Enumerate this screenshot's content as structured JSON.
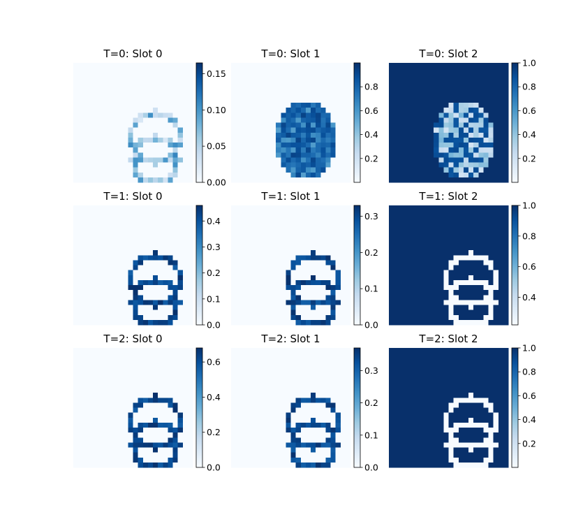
{
  "colormap": {
    "name": "Blues",
    "stops": [
      "#f7fbff",
      "#deebf7",
      "#c6dbef",
      "#9ecae1",
      "#6baed6",
      "#4292c6",
      "#2171b5",
      "#08519c",
      "#08306b"
    ]
  },
  "chart_data": {
    "type": "heatmap",
    "grid": [
      24,
      24
    ],
    "shape_params": {
      "ring1": {
        "center": [
          16.5,
          15.0
        ],
        "radius": 5.0
      },
      "ring2": {
        "center": [
          16.5,
          19.5
        ],
        "radius": 4.5
      }
    },
    "panels": [
      {
        "title": "T=0: Slot 0",
        "pattern": "faint_rings",
        "vmin": 0.0,
        "vmax": 0.165,
        "colorbar_ticks": [
          0.0,
          0.05,
          0.1,
          0.15
        ],
        "colorbar_tick_labels": [
          "0.00",
          "0.05",
          "0.10",
          "0.15"
        ]
      },
      {
        "title": "T=0: Slot 1",
        "pattern": "blob",
        "vmin": 0.0,
        "vmax": 1.0,
        "colorbar_ticks": [
          0.2,
          0.4,
          0.6,
          0.8
        ],
        "colorbar_tick_labels": [
          "0.2",
          "0.4",
          "0.6",
          "0.8"
        ]
      },
      {
        "title": "T=0: Slot 2",
        "pattern": "background_with_hole",
        "vmin": 0.0,
        "vmax": 1.0,
        "colorbar_ticks": [
          0.2,
          0.4,
          0.6,
          0.8,
          1.0
        ],
        "colorbar_tick_labels": [
          "0.2",
          "0.4",
          "0.6",
          "0.8",
          "1.0"
        ]
      },
      {
        "title": "T=1: Slot 0",
        "pattern": "rings",
        "vmin": 0.0,
        "vmax": 0.46,
        "colorbar_ticks": [
          0.0,
          0.1,
          0.2,
          0.3,
          0.4
        ],
        "colorbar_tick_labels": [
          "0.0",
          "0.1",
          "0.2",
          "0.3",
          "0.4"
        ]
      },
      {
        "title": "T=1: Slot 1",
        "pattern": "rings",
        "vmin": 0.0,
        "vmax": 0.33,
        "colorbar_ticks": [
          0.0,
          0.1,
          0.2,
          0.3
        ],
        "colorbar_tick_labels": [
          "0.0",
          "0.1",
          "0.2",
          "0.3"
        ]
      },
      {
        "title": "T=1: Slot 2",
        "pattern": "background_minus_rings",
        "vmin": 0.22,
        "vmax": 1.0,
        "colorbar_ticks": [
          0.4,
          0.6,
          0.8,
          1.0
        ],
        "colorbar_tick_labels": [
          "0.4",
          "0.6",
          "0.8",
          "1.0"
        ]
      },
      {
        "title": "T=2: Slot 0",
        "pattern": "rings",
        "vmin": 0.0,
        "vmax": 0.68,
        "colorbar_ticks": [
          0.0,
          0.2,
          0.4,
          0.6
        ],
        "colorbar_tick_labels": [
          "0.0",
          "0.2",
          "0.4",
          "0.6"
        ]
      },
      {
        "title": "T=2: Slot 1",
        "pattern": "rings",
        "vmin": 0.0,
        "vmax": 0.37,
        "colorbar_ticks": [
          0.0,
          0.1,
          0.2,
          0.3
        ],
        "colorbar_tick_labels": [
          "0.0",
          "0.1",
          "0.2",
          "0.3"
        ]
      },
      {
        "title": "T=2: Slot 2",
        "pattern": "background_minus_rings",
        "vmin": 0.0,
        "vmax": 1.0,
        "colorbar_ticks": [
          0.2,
          0.4,
          0.6,
          0.8,
          1.0
        ],
        "colorbar_tick_labels": [
          "0.2",
          "0.4",
          "0.6",
          "0.8",
          "1.0"
        ]
      }
    ]
  }
}
